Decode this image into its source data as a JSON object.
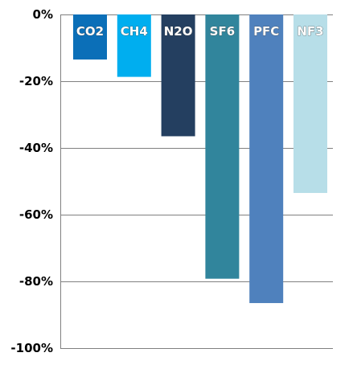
{
  "chart_data": {
    "type": "bar",
    "categories": [
      "CO2",
      "CH4",
      "N2O",
      "SF6",
      "PFC",
      "NF3"
    ],
    "values": [
      -13.5,
      -18.7,
      -36.5,
      -79.2,
      -86.5,
      -53.5
    ],
    "colors": [
      "#0b6fb8",
      "#00aeef",
      "#243f60",
      "#31859c",
      "#4f81bd",
      "#b7dee8"
    ],
    "title": "",
    "xlabel": "",
    "ylabel": "",
    "ylim": [
      -100,
      0
    ],
    "yticks": [
      0,
      -20,
      -40,
      -60,
      -80,
      -100
    ],
    "ytick_labels": [
      "0%",
      "-20%",
      "-40%",
      "-60%",
      "-80%",
      "-100%"
    ],
    "grid": true,
    "legend": "none",
    "category_label_position": "inside-top-of-bar"
  }
}
